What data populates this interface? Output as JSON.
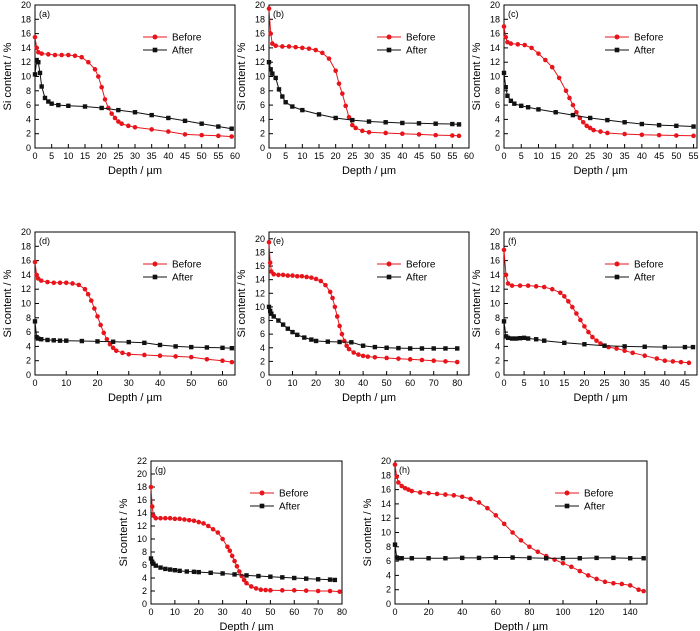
{
  "colors": {
    "before": "#e8141b",
    "after": "#111111"
  },
  "chart_data": [
    {
      "label": "(a)",
      "type": "line",
      "xlabel": "Depth / µm",
      "ylabel": "Si content / %",
      "xlim": [
        0,
        60
      ],
      "xstep": 5,
      "ylim": [
        0,
        20
      ],
      "ystep": 2,
      "legend": "top-right",
      "series": [
        {
          "name": "Before",
          "marker": "circle",
          "x": [
            0,
            0.5,
            1,
            2,
            4,
            6,
            8,
            10,
            12,
            14,
            16,
            18,
            19,
            20,
            21,
            22,
            23,
            24,
            25,
            26,
            28,
            30,
            35,
            40,
            45,
            50,
            55,
            59
          ],
          "y": [
            15.5,
            14.0,
            13.4,
            13.2,
            13.1,
            13.0,
            13.0,
            13.0,
            12.9,
            12.7,
            12.0,
            11.0,
            10.0,
            8.5,
            6.8,
            5.6,
            4.8,
            4.2,
            3.7,
            3.4,
            3.1,
            2.9,
            2.6,
            2.3,
            1.9,
            1.8,
            1.7,
            1.6
          ]
        },
        {
          "name": "After",
          "marker": "square",
          "x": [
            0,
            0.5,
            1,
            1.5,
            2,
            3,
            4,
            5,
            7,
            10,
            15,
            20,
            25,
            30,
            35,
            40,
            45,
            50,
            55,
            59
          ],
          "y": [
            10.3,
            12.3,
            12.0,
            10.5,
            8.6,
            7.0,
            6.5,
            6.2,
            6.0,
            5.9,
            5.8,
            5.6,
            5.3,
            5.0,
            4.6,
            4.2,
            3.8,
            3.4,
            3.0,
            2.7
          ]
        }
      ]
    },
    {
      "label": "(b)",
      "type": "line",
      "xlabel": "Depth / µm",
      "ylabel": "Si content / %",
      "xlim": [
        0,
        60
      ],
      "xstep": 5,
      "ylim": [
        0,
        20
      ],
      "ystep": 2,
      "legend": "top-right",
      "series": [
        {
          "name": "Before",
          "marker": "circle",
          "x": [
            0,
            0.5,
            1,
            2,
            4,
            6,
            8,
            10,
            12,
            14,
            16,
            18,
            20,
            21,
            22,
            23,
            24,
            25,
            26,
            28,
            30,
            35,
            40,
            45,
            50,
            55,
            57
          ],
          "y": [
            19.5,
            16.0,
            14.6,
            14.3,
            14.2,
            14.2,
            14.1,
            14.0,
            13.9,
            13.7,
            13.3,
            12.5,
            10.8,
            9.0,
            7.6,
            5.9,
            4.3,
            3.2,
            2.8,
            2.4,
            2.2,
            2.1,
            2.0,
            1.9,
            1.8,
            1.75,
            1.7
          ]
        },
        {
          "name": "After",
          "marker": "square",
          "x": [
            0,
            0.5,
            1,
            2,
            3,
            4,
            5,
            7,
            10,
            15,
            20,
            25,
            30,
            35,
            40,
            45,
            50,
            55,
            57
          ],
          "y": [
            12.0,
            11.0,
            10.4,
            9.8,
            8.2,
            7.2,
            6.4,
            5.8,
            5.3,
            4.7,
            4.2,
            3.9,
            3.7,
            3.6,
            3.5,
            3.45,
            3.4,
            3.35,
            3.3
          ]
        }
      ]
    },
    {
      "label": "(c)",
      "type": "line",
      "xlabel": "Depth / µm",
      "ylabel": "Si content / %",
      "xlim": [
        0,
        56
      ],
      "xstep": 5,
      "ylim": [
        0,
        20
      ],
      "ystep": 2,
      "legend": "top-right",
      "series": [
        {
          "name": "Before",
          "marker": "circle",
          "x": [
            0,
            0.5,
            1,
            2,
            4,
            6,
            8,
            10,
            12,
            14,
            16,
            18,
            19,
            20,
            21,
            22,
            23,
            24,
            25,
            26,
            28,
            30,
            35,
            40,
            45,
            50,
            55
          ],
          "y": [
            17.0,
            15.5,
            14.8,
            14.6,
            14.5,
            14.4,
            14.0,
            13.2,
            12.3,
            11.3,
            9.8,
            8.0,
            7.0,
            6.0,
            5.0,
            4.2,
            3.6,
            3.1,
            2.8,
            2.5,
            2.3,
            2.1,
            1.95,
            1.85,
            1.8,
            1.75,
            1.7
          ]
        },
        {
          "name": "After",
          "marker": "square",
          "x": [
            0,
            0.5,
            1,
            2,
            3,
            5,
            7,
            10,
            15,
            20,
            25,
            30,
            35,
            40,
            45,
            50,
            55
          ],
          "y": [
            10.5,
            8.5,
            7.3,
            6.6,
            6.2,
            5.9,
            5.7,
            5.4,
            5.0,
            4.6,
            4.2,
            3.9,
            3.6,
            3.35,
            3.2,
            3.1,
            3.0
          ]
        }
      ]
    },
    {
      "label": "(d)",
      "type": "line",
      "xlabel": "Depth / µm",
      "ylabel": "Si content / %",
      "xlim": [
        0,
        64
      ],
      "xstep": 10,
      "ylim": [
        0,
        20
      ],
      "ystep": 2,
      "legend": "top-right",
      "series": [
        {
          "name": "Before",
          "marker": "circle",
          "x": [
            0,
            0.5,
            1,
            2,
            4,
            6,
            8,
            10,
            12,
            14,
            16,
            17,
            18,
            19,
            20,
            21,
            22,
            23,
            24,
            25,
            26,
            28,
            30,
            35,
            40,
            45,
            50,
            55,
            60,
            63
          ],
          "y": [
            15.8,
            14.0,
            13.5,
            13.2,
            13.0,
            12.9,
            12.9,
            12.9,
            12.8,
            12.6,
            12.0,
            11.3,
            10.4,
            9.3,
            8.2,
            7.0,
            5.9,
            5.0,
            4.3,
            3.8,
            3.4,
            3.1,
            2.9,
            2.8,
            2.7,
            2.6,
            2.5,
            2.2,
            2.0,
            1.8
          ]
        },
        {
          "name": "After",
          "marker": "square",
          "x": [
            0,
            0.5,
            1,
            2,
            4,
            6,
            8,
            10,
            15,
            20,
            25,
            30,
            35,
            40,
            45,
            50,
            55,
            60,
            63
          ],
          "y": [
            7.5,
            5.3,
            5.1,
            5.0,
            4.9,
            4.85,
            4.8,
            4.8,
            4.75,
            4.7,
            4.65,
            4.6,
            4.5,
            4.2,
            4.0,
            3.9,
            3.85,
            3.8,
            3.75
          ]
        }
      ]
    },
    {
      "label": "(e)",
      "type": "line",
      "xlabel": "Depth / µm",
      "ylabel": "Si content / %",
      "xlim": [
        0,
        85
      ],
      "xstep": 10,
      "ylim": [
        0,
        21
      ],
      "ystep": 2,
      "legend": "top-right",
      "series": [
        {
          "name": "Before",
          "marker": "circle",
          "x": [
            0,
            0.5,
            1,
            2,
            4,
            6,
            8,
            10,
            12,
            14,
            16,
            18,
            20,
            22,
            24,
            26,
            27,
            28,
            29,
            30,
            31,
            32,
            33,
            34,
            36,
            38,
            40,
            42,
            45,
            50,
            55,
            60,
            65,
            70,
            75,
            80
          ],
          "y": [
            19.5,
            16.5,
            15.2,
            14.8,
            14.7,
            14.7,
            14.6,
            14.6,
            14.5,
            14.5,
            14.4,
            14.3,
            14.1,
            13.8,
            13.2,
            12.2,
            11.3,
            10.0,
            8.6,
            7.2,
            6.0,
            5.0,
            4.3,
            3.8,
            3.3,
            3.0,
            2.8,
            2.7,
            2.6,
            2.5,
            2.4,
            2.3,
            2.2,
            2.1,
            2.0,
            1.9
          ]
        },
        {
          "name": "After",
          "marker": "square",
          "x": [
            0,
            0.5,
            1,
            2,
            4,
            6,
            8,
            10,
            12,
            15,
            18,
            20,
            25,
            30,
            35,
            40,
            45,
            50,
            55,
            60,
            65,
            70,
            75,
            80
          ],
          "y": [
            10.0,
            9.4,
            9.0,
            8.6,
            8.0,
            7.4,
            6.8,
            6.3,
            5.9,
            5.5,
            5.2,
            5.0,
            4.9,
            4.85,
            4.8,
            4.3,
            4.1,
            4.0,
            3.95,
            3.9,
            3.9,
            3.9,
            3.9,
            3.9
          ]
        }
      ]
    },
    {
      "label": "(f)",
      "type": "line",
      "xlabel": "Depth / µm",
      "ylabel": "Si content / %",
      "xlim": [
        0,
        48
      ],
      "xstep": 5,
      "ylim": [
        0,
        20
      ],
      "ystep": 2,
      "legend": "top-right",
      "series": [
        {
          "name": "Before",
          "marker": "circle",
          "x": [
            0,
            0.5,
            1,
            2,
            4,
            6,
            8,
            10,
            12,
            14,
            15,
            16,
            17,
            18,
            19,
            20,
            21,
            22,
            23,
            24,
            25,
            26,
            28,
            30,
            32,
            35,
            38,
            40,
            42,
            44,
            46
          ],
          "y": [
            17.5,
            14.0,
            12.8,
            12.5,
            12.5,
            12.5,
            12.4,
            12.3,
            12.0,
            11.5,
            11.0,
            10.3,
            9.5,
            8.6,
            7.7,
            6.8,
            6.0,
            5.3,
            4.8,
            4.4,
            4.1,
            3.9,
            3.7,
            3.4,
            3.1,
            2.7,
            2.3,
            2.0,
            1.9,
            1.8,
            1.7
          ]
        },
        {
          "name": "After",
          "marker": "square",
          "x": [
            0,
            0.5,
            1,
            2,
            3,
            4,
            5,
            6,
            8,
            10,
            15,
            20,
            25,
            30,
            35,
            40,
            45,
            47
          ],
          "y": [
            7.5,
            5.4,
            5.2,
            5.1,
            5.1,
            5.15,
            5.2,
            5.1,
            5.0,
            4.8,
            4.5,
            4.3,
            4.1,
            4.0,
            3.95,
            3.9,
            3.9,
            3.9
          ]
        }
      ]
    },
    {
      "label": "(g)",
      "type": "line",
      "xlabel": "Depth / µm",
      "ylabel": "Si content / %",
      "xlim": [
        0,
        80
      ],
      "xstep": 10,
      "ylim": [
        0,
        22
      ],
      "ystep": 2,
      "legend": "top-right",
      "series": [
        {
          "name": "Before",
          "marker": "circle",
          "x": [
            0,
            0.5,
            1,
            2,
            4,
            6,
            8,
            10,
            12,
            14,
            16,
            18,
            20,
            22,
            24,
            26,
            28,
            30,
            32,
            33,
            34,
            35,
            36,
            37,
            38,
            39,
            40,
            42,
            44,
            46,
            48,
            50,
            55,
            60,
            65,
            70,
            75,
            79
          ],
          "y": [
            18.0,
            15.0,
            13.6,
            13.2,
            13.2,
            13.2,
            13.2,
            13.1,
            13.1,
            13.0,
            12.9,
            12.8,
            12.6,
            12.4,
            12.0,
            11.5,
            11.0,
            10.0,
            8.8,
            8.2,
            7.4,
            6.6,
            5.8,
            5.0,
            4.3,
            3.7,
            3.2,
            2.7,
            2.4,
            2.2,
            2.15,
            2.1,
            2.1,
            2.1,
            2.05,
            2.0,
            2.0,
            1.9
          ]
        },
        {
          "name": "After",
          "marker": "square",
          "x": [
            0,
            0.5,
            1,
            2,
            4,
            6,
            8,
            10,
            12,
            15,
            18,
            20,
            25,
            30,
            35,
            40,
            45,
            50,
            55,
            60,
            65,
            70,
            75,
            77
          ],
          "y": [
            7.0,
            6.5,
            6.2,
            5.9,
            5.6,
            5.4,
            5.3,
            5.2,
            5.1,
            5.0,
            4.95,
            4.9,
            4.8,
            4.7,
            4.55,
            4.4,
            4.3,
            4.2,
            4.1,
            4.0,
            3.9,
            3.8,
            3.75,
            3.7
          ]
        }
      ]
    },
    {
      "label": "(h)",
      "type": "line",
      "xlabel": "Depth / µm",
      "ylabel": "Si content / %",
      "xlim": [
        0,
        150
      ],
      "xstep": 20,
      "ylim": [
        0,
        20
      ],
      "ystep": 2,
      "legend": "top-right",
      "series": [
        {
          "name": "Before",
          "marker": "circle",
          "x": [
            0,
            1,
            2,
            4,
            6,
            8,
            10,
            15,
            20,
            25,
            30,
            35,
            40,
            45,
            50,
            55,
            60,
            65,
            70,
            75,
            80,
            85,
            90,
            95,
            100,
            105,
            110,
            115,
            120,
            125,
            130,
            135,
            140,
            145,
            148
          ],
          "y": [
            19.5,
            17.8,
            17.0,
            16.5,
            16.2,
            16.0,
            15.8,
            15.6,
            15.5,
            15.4,
            15.3,
            15.2,
            15.0,
            14.7,
            14.2,
            13.4,
            12.4,
            11.2,
            10.0,
            8.9,
            8.0,
            7.3,
            6.7,
            6.2,
            5.7,
            5.2,
            4.6,
            4.0,
            3.5,
            3.1,
            2.9,
            2.8,
            2.6,
            2.0,
            1.8
          ]
        },
        {
          "name": "After",
          "marker": "square",
          "x": [
            0,
            1,
            2,
            4,
            10,
            20,
            30,
            40,
            50,
            60,
            70,
            80,
            90,
            100,
            110,
            120,
            130,
            140,
            148
          ],
          "y": [
            8.3,
            6.5,
            6.4,
            6.4,
            6.4,
            6.4,
            6.4,
            6.45,
            6.45,
            6.5,
            6.5,
            6.45,
            6.4,
            6.4,
            6.4,
            6.45,
            6.45,
            6.4,
            6.4
          ]
        }
      ]
    }
  ]
}
